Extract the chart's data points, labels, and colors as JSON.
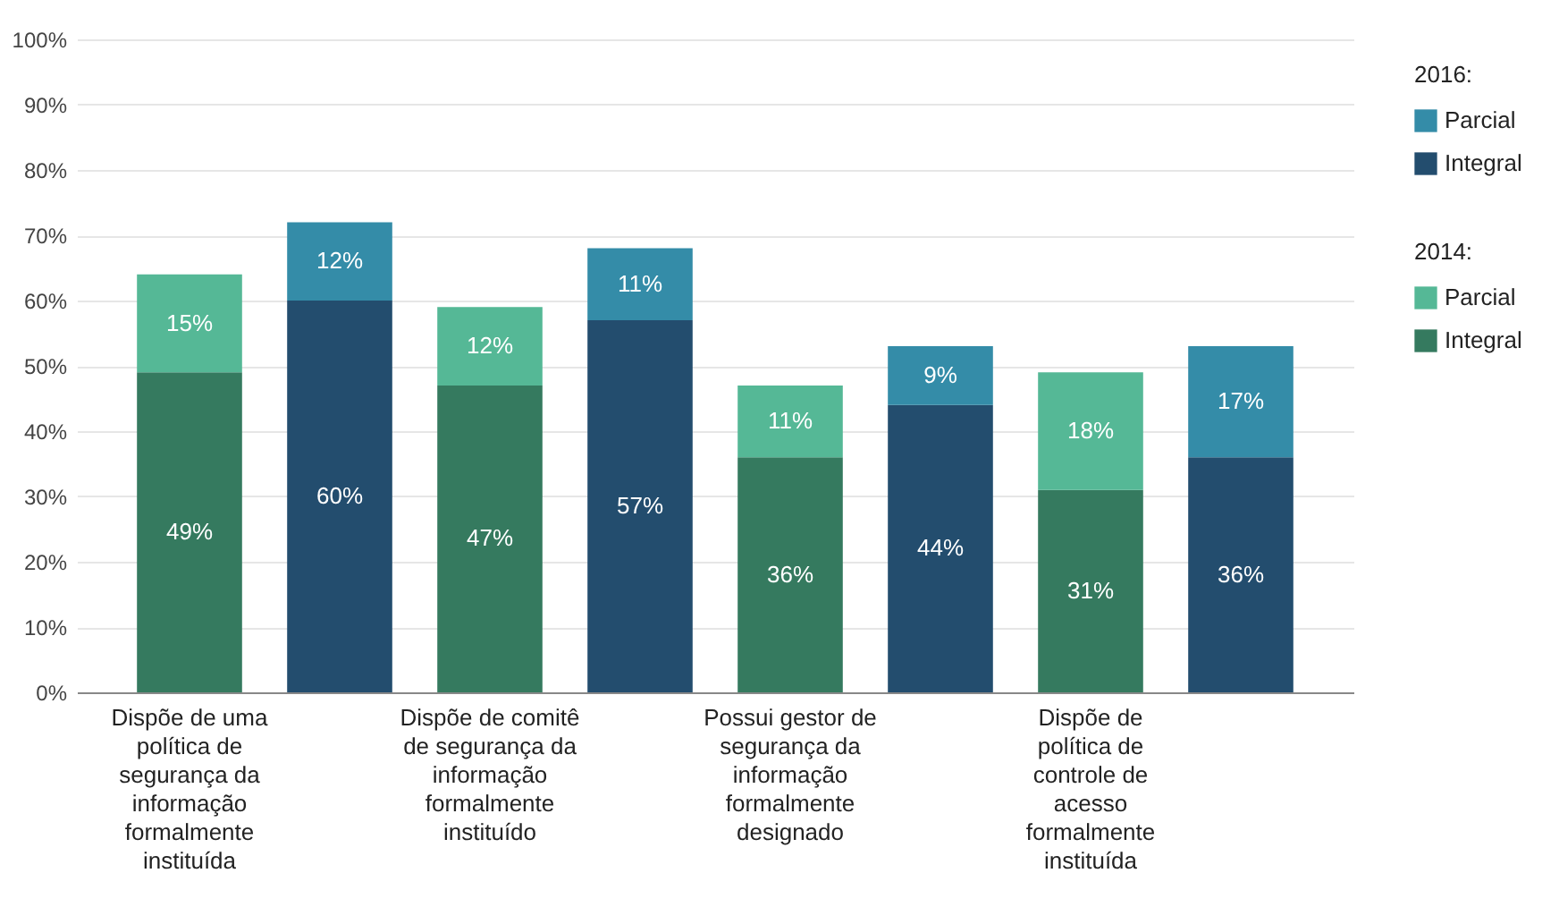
{
  "chart_data": {
    "type": "bar",
    "stacked": true,
    "categories": [
      "Dispõe de uma política de segurança da informação formalmente instituída",
      null,
      "Dispõe de comitê de segurança da informação formalmente instituído",
      null,
      "Possui gestor de segurança da informação formalmente designado",
      null,
      "Dispõe de política de controle de acesso formalmente instituída",
      null
    ],
    "series": [
      {
        "name": "Integral",
        "color": "#357a5f",
        "values": [
          49,
          null,
          47,
          null,
          36,
          null,
          31,
          null
        ],
        "value_labels": [
          "49%",
          null,
          "47%",
          null,
          "36%",
          null,
          "31%",
          null
        ]
      },
      {
        "name": "Parcial",
        "color": "#55b896",
        "values": [
          15,
          null,
          12,
          null,
          11,
          null,
          18,
          null
        ],
        "value_labels": [
          "15%",
          null,
          "12%",
          null,
          "11%",
          null,
          "18%",
          null
        ]
      },
      {
        "name": "Integral",
        "color": "#234d6e",
        "values": [
          null,
          60,
          null,
          57,
          null,
          44,
          null,
          36
        ],
        "value_labels": [
          null,
          "60%",
          null,
          "57%",
          null,
          "44%",
          null,
          "36%"
        ]
      },
      {
        "name": "Parcial",
        "color": "#348ca8",
        "values": [
          null,
          12,
          null,
          11,
          null,
          9,
          null,
          17
        ],
        "value_labels": [
          null,
          "12%",
          null,
          "11%",
          null,
          "9%",
          null,
          "17%"
        ]
      }
    ],
    "annotations": [
      "2016:",
      "2014:"
    ],
    "ylim": [
      0,
      100
    ],
    "yticks": [
      {
        "value": 0,
        "label": "0%"
      },
      {
        "value": 10,
        "label": "10%"
      },
      {
        "value": 20,
        "label": "20%"
      },
      {
        "value": 30,
        "label": "30%"
      },
      {
        "value": 40,
        "label": "40%"
      },
      {
        "value": 50,
        "label": "50%"
      },
      {
        "value": 60,
        "label": "60%"
      },
      {
        "value": 70,
        "label": "70%"
      },
      {
        "value": 80,
        "label": "80%"
      },
      {
        "value": 90,
        "label": "90%"
      },
      {
        "value": 100,
        "label": "100%"
      }
    ],
    "grid": "y",
    "legend": "right"
  }
}
